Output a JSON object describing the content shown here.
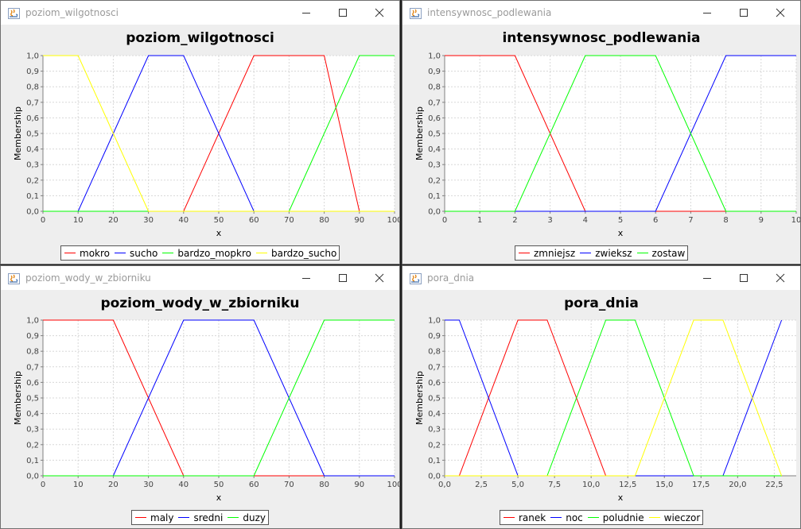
{
  "windows": [
    {
      "window_title": "poziom_wilgotnosci",
      "chart_data": {
        "type": "line",
        "title": "poziom_wilgotnosci",
        "xlabel": "x",
        "ylabel": "Membership",
        "xlim": [
          0,
          100
        ],
        "ylim": [
          0,
          1
        ],
        "xticks": [
          "0",
          "10",
          "20",
          "30",
          "40",
          "50",
          "60",
          "70",
          "80",
          "90",
          "100"
        ],
        "yticks": [
          "0,0",
          "0,1",
          "0,2",
          "0,3",
          "0,4",
          "0,5",
          "0,6",
          "0,7",
          "0,8",
          "0,9",
          "1,0"
        ],
        "grid": true,
        "legend_position": "bottom",
        "series": [
          {
            "name": "mokro",
            "color": "#ff0000",
            "x": [
              0,
              40,
              60,
              80,
              90,
              100
            ],
            "y": [
              0,
              0,
              1,
              1,
              0,
              0
            ]
          },
          {
            "name": "sucho",
            "color": "#0000ff",
            "x": [
              0,
              10,
              30,
              40,
              60,
              100
            ],
            "y": [
              0,
              0,
              1,
              1,
              0,
              0
            ]
          },
          {
            "name": "bardzo_mopkro",
            "color": "#00ff00",
            "x": [
              0,
              60,
              70,
              90,
              100
            ],
            "y": [
              0,
              0,
              0,
              1,
              1
            ]
          },
          {
            "name": "bardzo_sucho",
            "color": "#ffff00",
            "x": [
              0,
              10,
              30,
              100
            ],
            "y": [
              1,
              1,
              0,
              0
            ]
          }
        ]
      }
    },
    {
      "window_title": "intensywnosc_podlewania",
      "chart_data": {
        "type": "line",
        "title": "intensywnosc_podlewania",
        "xlabel": "x",
        "ylabel": "Membership",
        "xlim": [
          0,
          10
        ],
        "ylim": [
          0,
          1
        ],
        "xticks": [
          "0",
          "1",
          "2",
          "3",
          "4",
          "5",
          "6",
          "7",
          "8",
          "9",
          "10"
        ],
        "yticks": [
          "0,0",
          "0,1",
          "0,2",
          "0,3",
          "0,4",
          "0,5",
          "0,6",
          "0,7",
          "0,8",
          "0,9",
          "1,0"
        ],
        "grid": true,
        "legend_position": "bottom",
        "series": [
          {
            "name": "zmniejsz",
            "color": "#ff0000",
            "x": [
              0,
              2,
              4,
              10
            ],
            "y": [
              1,
              1,
              0,
              0
            ]
          },
          {
            "name": "zwieksz",
            "color": "#0000ff",
            "x": [
              0,
              6,
              8,
              10
            ],
            "y": [
              0,
              0,
              1,
              1
            ]
          },
          {
            "name": "zostaw",
            "color": "#00ff00",
            "x": [
              0,
              2,
              4,
              6,
              8,
              10
            ],
            "y": [
              0,
              0,
              1,
              1,
              0,
              0
            ]
          }
        ]
      }
    },
    {
      "window_title": "poziom_wody_w_zbiorniku",
      "chart_data": {
        "type": "line",
        "title": "poziom_wody_w_zbiorniku",
        "xlabel": "x",
        "ylabel": "Membership",
        "xlim": [
          0,
          100
        ],
        "ylim": [
          0,
          1
        ],
        "xticks": [
          "0",
          "10",
          "20",
          "30",
          "40",
          "50",
          "60",
          "70",
          "80",
          "90",
          "100"
        ],
        "yticks": [
          "0,0",
          "0,1",
          "0,2",
          "0,3",
          "0,4",
          "0,5",
          "0,6",
          "0,7",
          "0,8",
          "0,9",
          "1,0"
        ],
        "grid": true,
        "legend_position": "bottom",
        "series": [
          {
            "name": "maly",
            "color": "#ff0000",
            "x": [
              0,
              20,
              40,
              100
            ],
            "y": [
              1,
              1,
              0,
              0
            ]
          },
          {
            "name": "sredni",
            "color": "#0000ff",
            "x": [
              0,
              20,
              40,
              60,
              80,
              100
            ],
            "y": [
              0,
              0,
              1,
              1,
              0,
              0
            ]
          },
          {
            "name": "duzy",
            "color": "#00ff00",
            "x": [
              0,
              60,
              80,
              100
            ],
            "y": [
              0,
              0,
              1,
              1
            ]
          }
        ]
      }
    },
    {
      "window_title": "pora_dnia",
      "chart_data": {
        "type": "line",
        "title": "pora_dnia",
        "xlabel": "x",
        "ylabel": "Membership",
        "xlim": [
          0,
          24
        ],
        "ylim": [
          0,
          1
        ],
        "xticks": [
          "0,0",
          "2,5",
          "5,0",
          "7,5",
          "10,0",
          "12,5",
          "15,0",
          "17,5",
          "20,0",
          "22,5"
        ],
        "xtick_values": [
          0,
          2.5,
          5,
          7.5,
          10,
          12.5,
          15,
          17.5,
          20,
          22.5
        ],
        "yticks": [
          "0,0",
          "0,1",
          "0,2",
          "0,3",
          "0,4",
          "0,5",
          "0,6",
          "0,7",
          "0,8",
          "0,9",
          "1,0"
        ],
        "grid": true,
        "legend_position": "bottom",
        "series": [
          {
            "name": "ranek",
            "color": "#ff0000",
            "x": [
              0,
              1,
              5,
              7,
              11,
              23
            ],
            "y": [
              0,
              0,
              1,
              1,
              0,
              0
            ]
          },
          {
            "name": "noc",
            "color": "#0000ff",
            "x": [
              0,
              1,
              5,
              19,
              23
            ],
            "y": [
              1,
              1,
              0,
              0,
              1
            ]
          },
          {
            "name": "poludnie",
            "color": "#00ff00",
            "x": [
              0,
              7,
              11,
              13,
              17,
              23
            ],
            "y": [
              0,
              0,
              1,
              1,
              0,
              0
            ]
          },
          {
            "name": "wieczor",
            "color": "#ffff00",
            "x": [
              0,
              13,
              17,
              19,
              23
            ],
            "y": [
              0,
              0,
              1,
              1,
              0
            ]
          }
        ]
      }
    }
  ]
}
